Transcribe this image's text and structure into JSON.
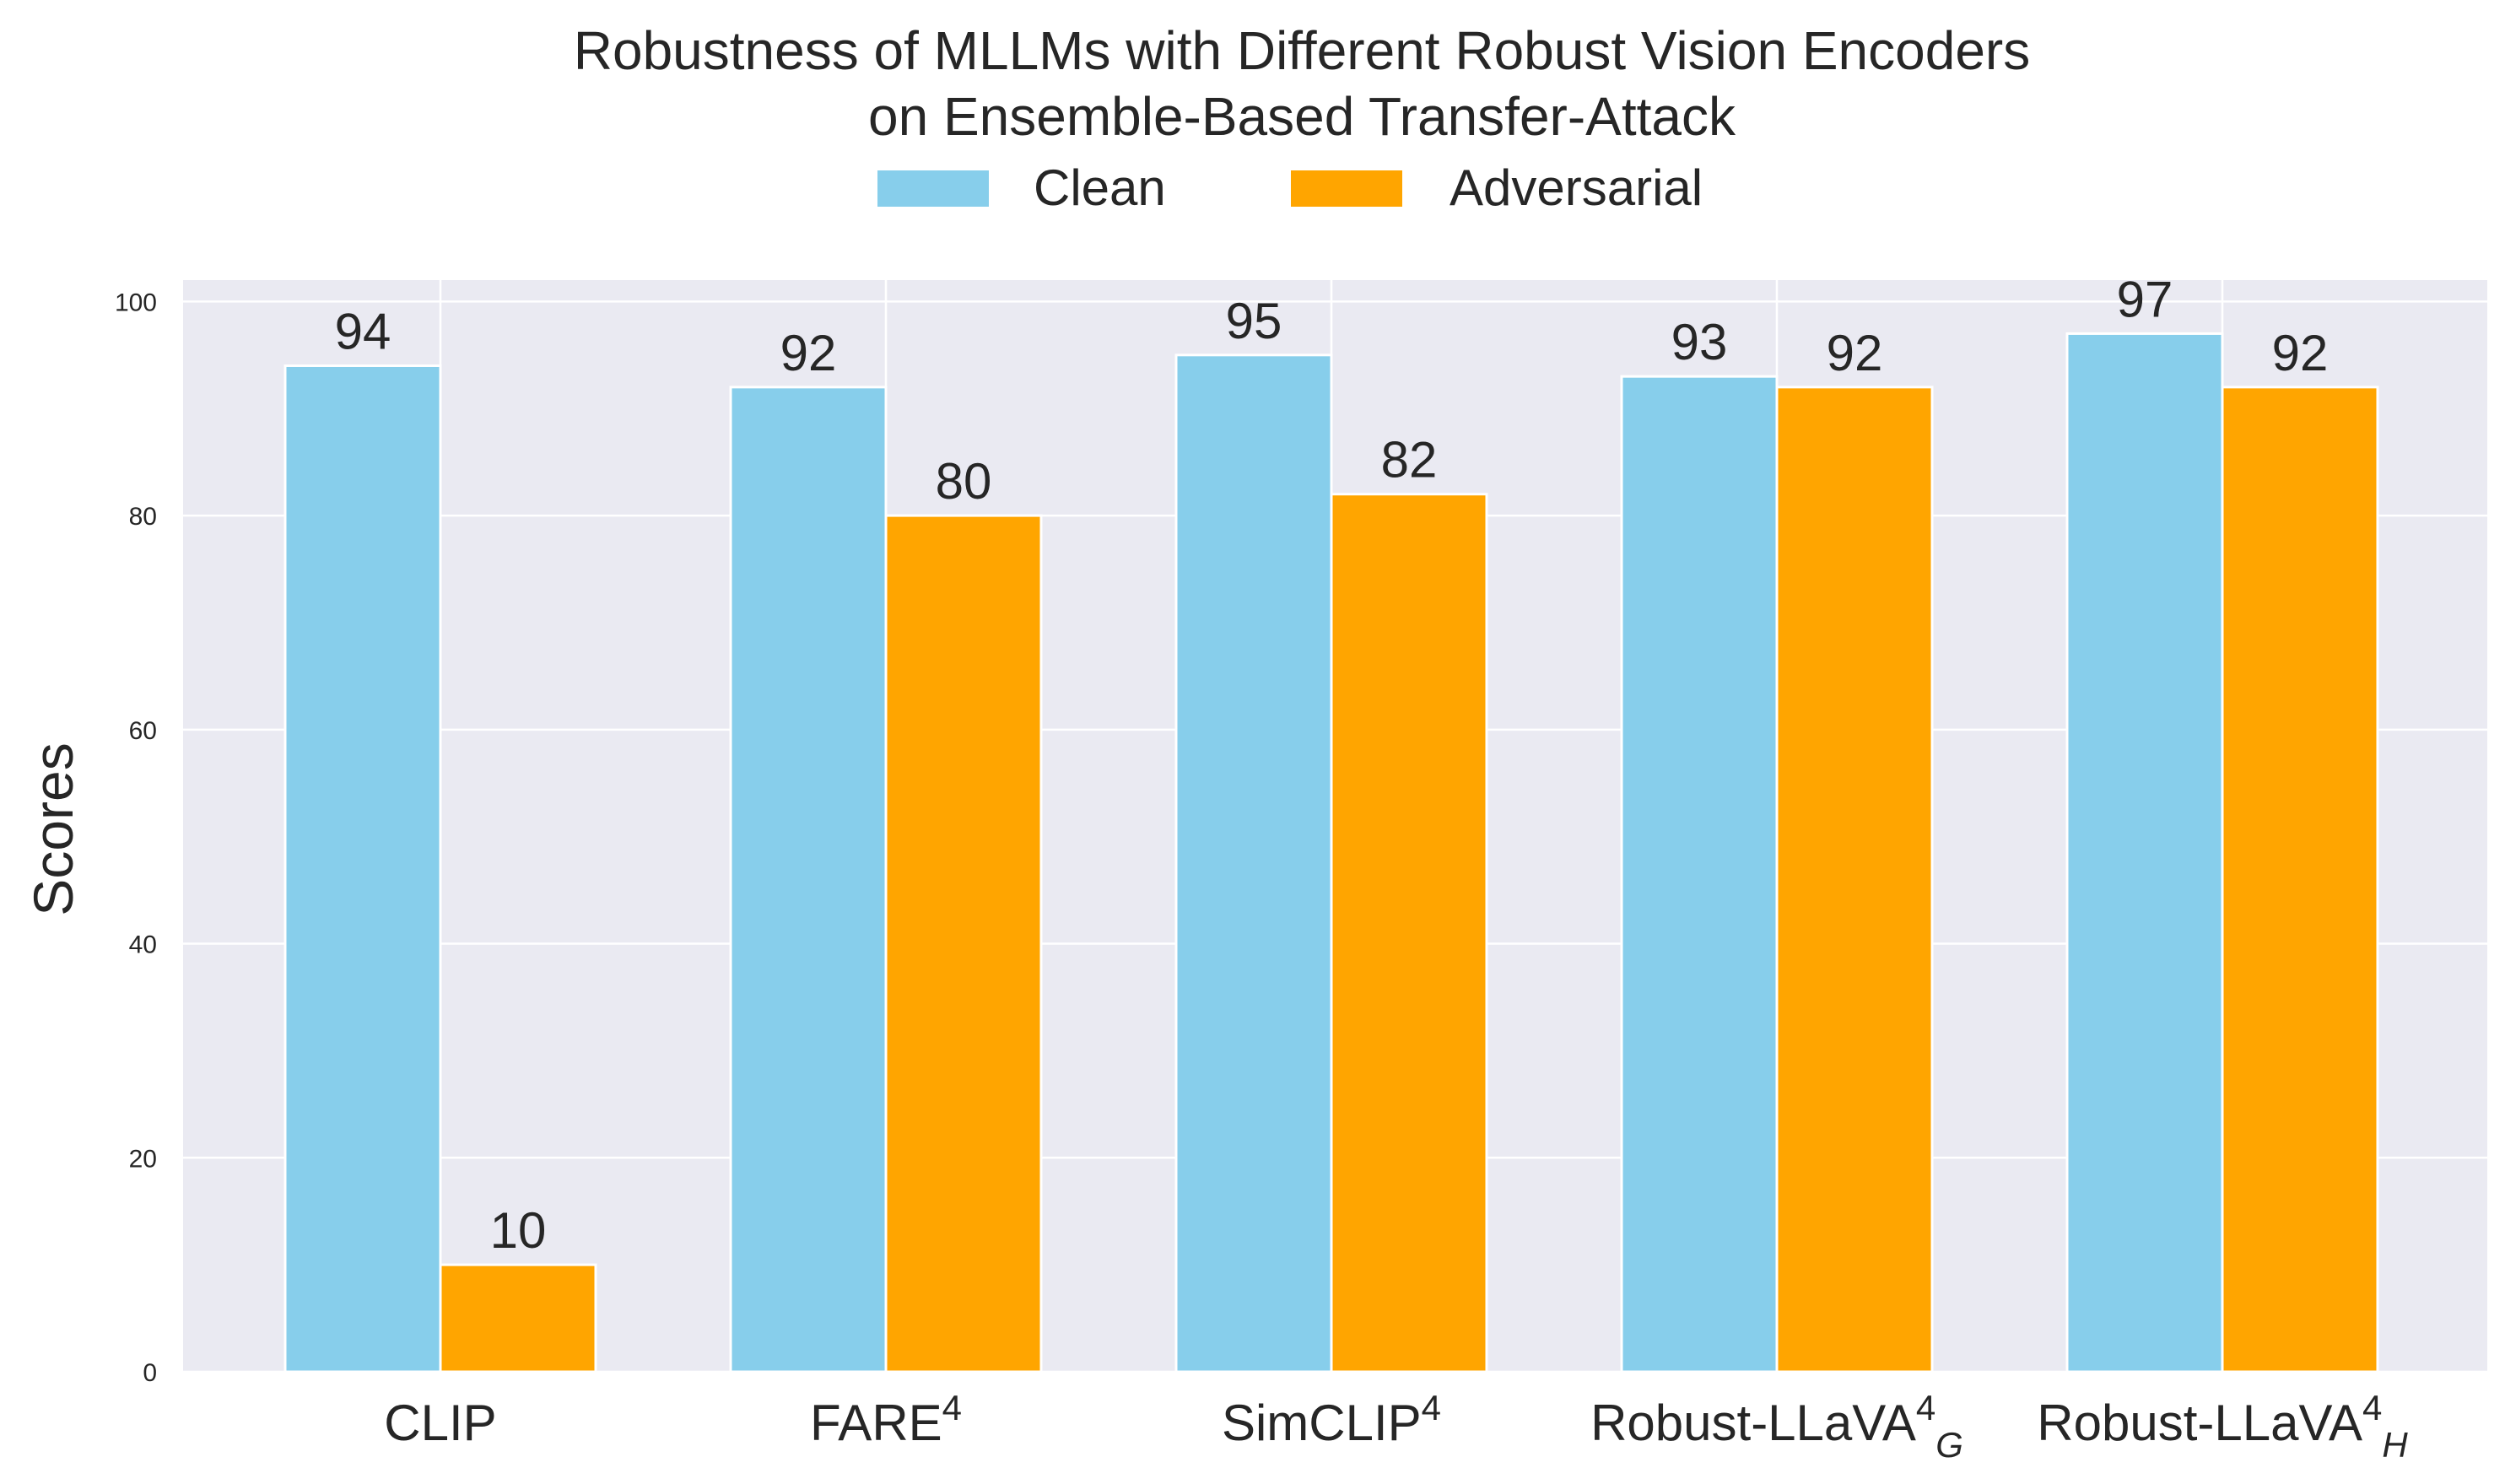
{
  "chart_data": {
    "type": "bar",
    "title": "Robustness of MLLMs with Different Robust Vision Encoders",
    "subtitle": "on Ensemble-Based Transfer-Attack",
    "ylabel": "Scores",
    "xlabel": "",
    "ylim": [
      0,
      102
    ],
    "yticks": [
      0,
      20,
      40,
      60,
      80,
      100
    ],
    "grid": true,
    "legend_position": "top-center",
    "categories": [
      {
        "base": "CLIP",
        "sup": "",
        "sub": ""
      },
      {
        "base": "FARE",
        "sup": "4",
        "sub": ""
      },
      {
        "base": "SimCLIP",
        "sup": "4",
        "sub": ""
      },
      {
        "base": "Robust-LLaVA",
        "sup": "4",
        "sub": "G"
      },
      {
        "base": "Robust-LLaVA",
        "sup": "4",
        "sub": "H"
      }
    ],
    "series": [
      {
        "name": "Clean",
        "color": "#87CEEB",
        "values": [
          94,
          92,
          95,
          93,
          97
        ]
      },
      {
        "name": "Adversarial",
        "color": "#FFA500",
        "values": [
          10,
          80,
          82,
          92,
          92
        ]
      }
    ],
    "colors": {
      "plot_background": "#EAEAF2",
      "grid": "#FFFFFF",
      "text": "#262626"
    }
  }
}
